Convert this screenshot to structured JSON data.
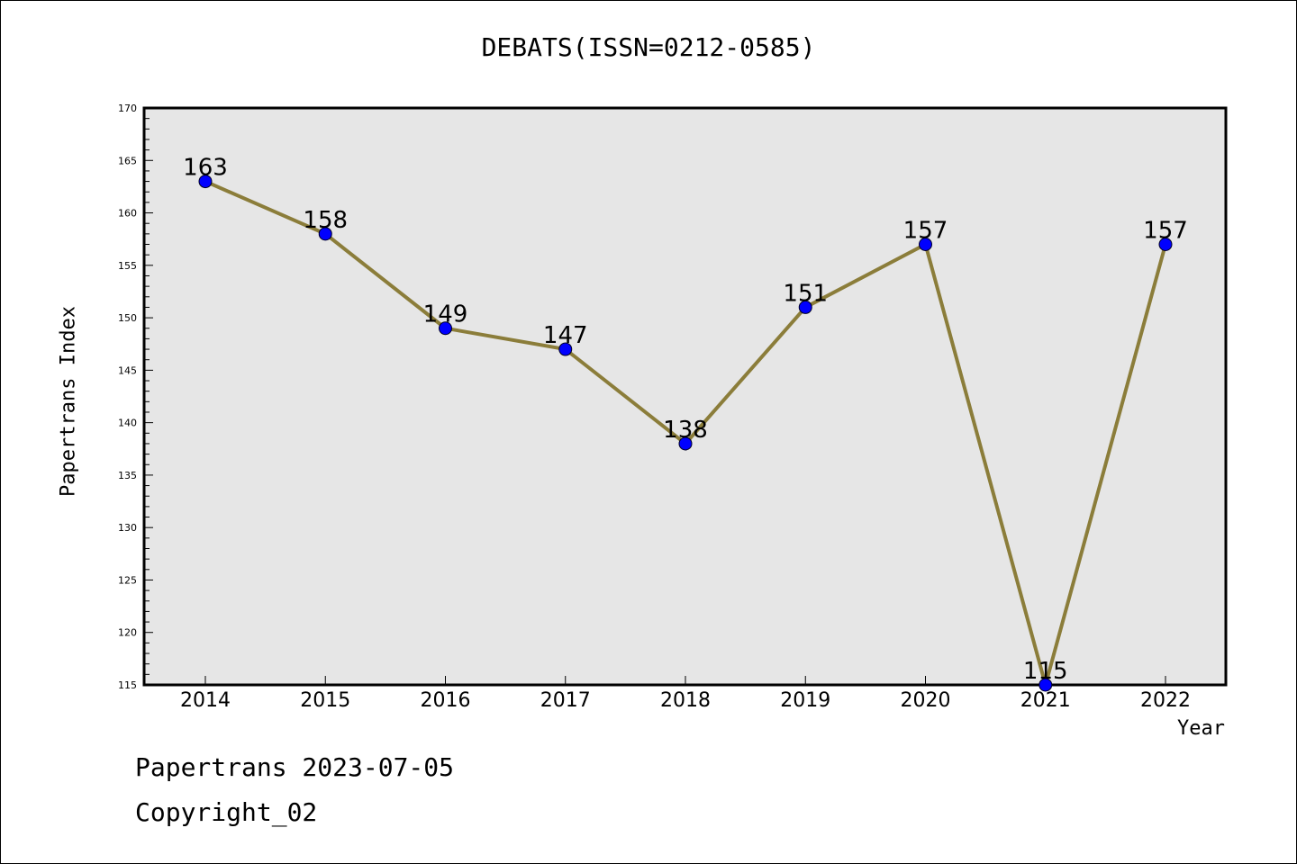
{
  "chart_data": {
    "type": "line",
    "title": "DEBATS(ISSN=0212-0585)",
    "xlabel": "Year",
    "ylabel": "Papertrans Index",
    "categories": [
      "2014",
      "2015",
      "2016",
      "2017",
      "2018",
      "2019",
      "2020",
      "2021",
      "2022"
    ],
    "series": [
      {
        "values": [
          163,
          158,
          149,
          147,
          138,
          151,
          157,
          115,
          157
        ]
      }
    ],
    "data_labels": [
      "163",
      "158",
      "149",
      "147",
      "138",
      "151",
      "157",
      "115",
      "157"
    ],
    "ylim": [
      115,
      170
    ],
    "yticks": [
      115,
      120,
      125,
      130,
      135,
      140,
      145,
      150,
      155,
      160,
      165,
      170
    ],
    "ytick_labels": [
      "115",
      "120",
      "125",
      "130",
      "135",
      "140",
      "145",
      "150",
      "155",
      "160",
      "165",
      "170"
    ],
    "grid": false,
    "legend": "none",
    "colors": {
      "line": "#8b7d3a",
      "marker": "#0000ff",
      "plot_bg": "#e6e6e6"
    }
  },
  "footer": {
    "line1": "Papertrans 2023-07-05",
    "line2": "Copyright_02"
  }
}
